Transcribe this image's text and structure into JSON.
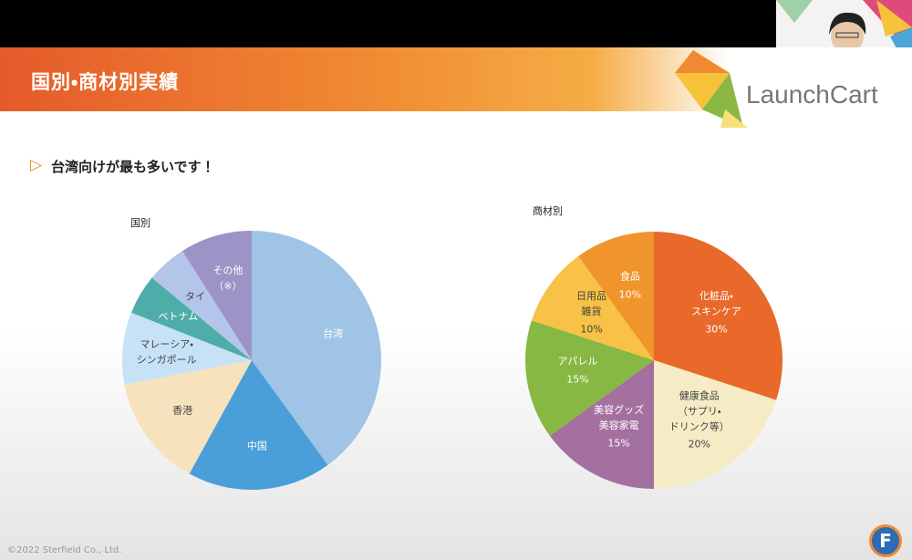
{
  "slide": {
    "title": "国別・商材別実績",
    "subtitle": "台湾向けが最も多いです！",
    "brand": "LaunchCart",
    "copyright": "©2022 Sterfield Co., Ltd.",
    "badge": "F"
  },
  "chart_data": [
    {
      "type": "pie",
      "title": "国別",
      "categories": [
        "台湾",
        "中国",
        "香港",
        "マレーシア・\nシンガポール",
        "ベトナム",
        "タイ",
        "その他\n（※）"
      ],
      "values": [
        40,
        18,
        14,
        9,
        5,
        5,
        9
      ],
      "colors": [
        "#9fc4e6",
        "#4a9fd8",
        "#f6e2bc",
        "#c7e2f6",
        "#4fada9",
        "#b3c5e8",
        "#9d93c6"
      ]
    },
    {
      "type": "pie",
      "title": "商材別",
      "categories": [
        "化粧品・\nスキンケア",
        "健康食品\n（サプリ・\nドリンク等）",
        "美容グッズ\n美容家電",
        "アパレル",
        "日用品\n雑貨",
        "食品"
      ],
      "values": [
        30,
        20,
        15,
        15,
        10,
        10
      ],
      "value_labels": [
        "30%",
        "20%",
        "15%",
        "15%",
        "10%",
        "10%"
      ],
      "colors": [
        "#e8692a",
        "#f5ecc6",
        "#a4709f",
        "#87b843",
        "#f7c245",
        "#ef952b"
      ]
    }
  ]
}
